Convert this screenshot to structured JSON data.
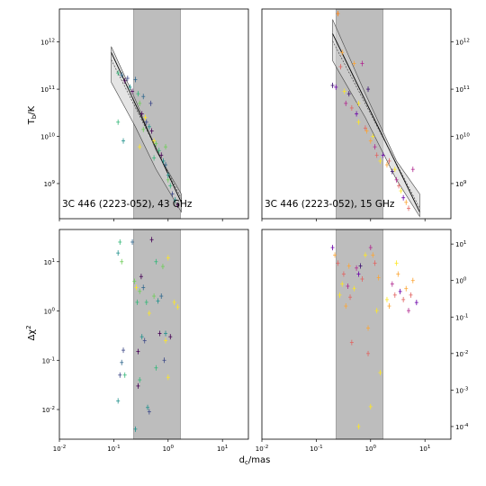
{
  "chart_data": {
    "type": "scatter",
    "ylabel_top": "T_b/K",
    "ylabel_bottom": "Δχ²",
    "xlabel": "d_c/mas",
    "shaded_region_x": [
      0.23,
      1.7
    ],
    "shade_color": "#bdbdbd",
    "panels": [
      {
        "id": "top-left",
        "annotation": "3C 446 (2223-052), 43 GHz",
        "xlog": true,
        "ylog": true,
        "xlim": [
          0.01,
          30
        ],
        "ylim": [
          180000000.0,
          5000000000000.0
        ],
        "x_ticks": [],
        "y_ticks": [
          "10^9",
          "10^10",
          "10^11",
          "10^12"
        ],
        "y_side": "left",
        "fit_line": {
          "x": [
            0.09,
            1.75
          ],
          "y": [
            600000000000.0,
            400000000.0
          ]
        },
        "band": {
          "x": [
            0.09,
            0.25,
            0.6,
            1.75
          ],
          "lower": [
            140000000000.0,
            16000000000.0,
            2000000000.0,
            250000000.0
          ],
          "upper": [
            800000000000.0,
            60000000000.0,
            5000000000.0,
            600000000.0
          ]
        },
        "points": [
          [
            0.12,
            220000000000.0,
            "#35b779"
          ],
          [
            0.14,
            200000000000.0,
            "#31688e"
          ],
          [
            0.16,
            150000000000.0,
            "#440154"
          ],
          [
            0.18,
            170000000000.0,
            "#3e4a89"
          ],
          [
            0.2,
            110000000000.0,
            "#21918c"
          ],
          [
            0.22,
            90000000000.0,
            "#440154"
          ],
          [
            0.25,
            160000000000.0,
            "#31688e"
          ],
          [
            0.28,
            80000000000.0,
            "#35b779"
          ],
          [
            0.3,
            50000000000.0,
            "#6ece58"
          ],
          [
            0.33,
            30000000000.0,
            "#440154"
          ],
          [
            0.35,
            70000000000.0,
            "#31688e"
          ],
          [
            0.38,
            25000000000.0,
            "#fde725"
          ],
          [
            0.4,
            20000000000.0,
            "#3e4a89"
          ],
          [
            0.45,
            16000000000.0,
            "#21918c"
          ],
          [
            0.5,
            13000000000.0,
            "#440154"
          ],
          [
            0.55,
            8000000000.0,
            "#fde725"
          ],
          [
            0.6,
            7000000000.0,
            "#6ece58"
          ],
          [
            0.68,
            5000000000.0,
            "#35b779"
          ],
          [
            0.75,
            4000000000.0,
            "#440154"
          ],
          [
            0.82,
            3000000000.0,
            "#21918c"
          ],
          [
            0.9,
            2500000000.0,
            "#31688e"
          ],
          [
            1.0,
            1200000000.0,
            "#6ece58"
          ],
          [
            1.1,
            900000000.0,
            "#35b779"
          ],
          [
            1.2,
            600000000.0,
            "#3e4a89"
          ],
          [
            1.35,
            450000000.0,
            "#21918c"
          ],
          [
            1.5,
            350000000.0,
            "#440154"
          ],
          [
            0.12,
            20000000000.0,
            "#35b779"
          ],
          [
            0.15,
            8000000000.0,
            "#21918c"
          ],
          [
            0.3,
            6000000000.0,
            "#fde725"
          ],
          [
            0.35,
            14000000000.0,
            "#6ece58"
          ],
          [
            0.55,
            3500000000.0,
            "#35b779"
          ],
          [
            0.9,
            6000000000.0,
            "#6ece58"
          ],
          [
            1.0,
            1500000000.0,
            "#21918c"
          ],
          [
            0.48,
            50000000000.0,
            "#3e4a89"
          ]
        ]
      },
      {
        "id": "top-right",
        "annotation": "3C 446 (2223-052), 15 GHz",
        "xlog": true,
        "ylog": true,
        "xlim": [
          0.01,
          30
        ],
        "ylim": [
          180000000.0,
          5000000000000.0
        ],
        "x_ticks": [],
        "y_ticks": [
          "10^9",
          "10^10",
          "10^11",
          "10^12"
        ],
        "y_side": "right",
        "fit_line": {
          "x": [
            0.2,
            8.0
          ],
          "y": [
            1500000000000.0,
            250000000.0
          ]
        },
        "band": {
          "x": [
            0.2,
            0.8,
            3.0,
            8.0
          ],
          "lower": [
            400000000000.0,
            25000000000.0,
            1200000000.0,
            200000000.0
          ],
          "upper": [
            3000000000000.0,
            80000000000.0,
            3000000000.0,
            600000000.0
          ]
        },
        "points": [
          [
            0.2,
            120000000000.0,
            "#3b0f70"
          ],
          [
            0.23,
            110000000000.0,
            "#6a00a8"
          ],
          [
            0.25,
            4000000000000.0,
            "#ff7f0e"
          ],
          [
            0.28,
            300000000000.0,
            "#e16462"
          ],
          [
            0.3,
            600000000000.0,
            "#fca636"
          ],
          [
            0.33,
            90000000000.0,
            "#fde725"
          ],
          [
            0.35,
            50000000000.0,
            "#b12a90"
          ],
          [
            0.4,
            80000000000.0,
            "#3b0f70"
          ],
          [
            0.45,
            40000000000.0,
            "#e16462"
          ],
          [
            0.5,
            350000000000.0,
            "#fca636"
          ],
          [
            0.55,
            30000000000.0,
            "#6a00a8"
          ],
          [
            0.6,
            20000000000.0,
            "#fde725"
          ],
          [
            0.7,
            350000000000.0,
            "#b12a90"
          ],
          [
            0.8,
            15000000000.0,
            "#e16462"
          ],
          [
            0.9,
            100000000000.0,
            "#3b0f70"
          ],
          [
            1.0,
            8000000000.0,
            "#fca636"
          ],
          [
            1.1,
            10000000000.0,
            "#fde725"
          ],
          [
            1.2,
            6000000000.0,
            "#b12a90"
          ],
          [
            1.3,
            4000000000.0,
            "#e16462"
          ],
          [
            1.5,
            3000000000.0,
            "#fde725"
          ],
          [
            1.7,
            4000000000.0,
            "#6a00a8"
          ],
          [
            2.0,
            2500000000.0,
            "#fca636"
          ],
          [
            2.2,
            3000000000.0,
            "#e16462"
          ],
          [
            2.5,
            1800000000.0,
            "#3b0f70"
          ],
          [
            2.8,
            2000000000.0,
            "#fde725"
          ],
          [
            3.0,
            1200000000.0,
            "#b12a90"
          ],
          [
            3.3,
            900000000.0,
            "#e16462"
          ],
          [
            3.6,
            700000000.0,
            "#fde725"
          ],
          [
            4.0,
            500000000.0,
            "#6a00a8"
          ],
          [
            4.5,
            400000000.0,
            "#fca636"
          ],
          [
            5.0,
            300000000.0,
            "#e16462"
          ],
          [
            6.0,
            2000000000.0,
            "#b12a90"
          ],
          [
            0.6,
            50000000000.0,
            "#fde725"
          ],
          [
            0.85,
            13000000000.0,
            "#fca636"
          ]
        ]
      },
      {
        "id": "bottom-left",
        "annotation": "",
        "xlog": true,
        "ylog": true,
        "xlim": [
          0.01,
          30
        ],
        "ylim": [
          0.0025,
          45
        ],
        "x_ticks": [
          "10^-2",
          "10^-1",
          "10^0",
          "10^1"
        ],
        "y_ticks": [
          "10^-2",
          "10^-1",
          "10^0",
          "10^1"
        ],
        "y_side": "left",
        "points": [
          [
            0.12,
            15,
            "#21918c"
          ],
          [
            0.13,
            25,
            "#35b779"
          ],
          [
            0.14,
            10,
            "#6ece58"
          ],
          [
            0.12,
            0.015,
            "#21918c"
          ],
          [
            0.13,
            0.05,
            "#3e4a89"
          ],
          [
            0.14,
            0.09,
            "#31688e"
          ],
          [
            0.15,
            0.16,
            "#3e4a89"
          ],
          [
            0.16,
            0.05,
            "#35b779"
          ],
          [
            0.22,
            25,
            "#31688e"
          ],
          [
            0.24,
            4,
            "#6ece58"
          ],
          [
            0.25,
            0.004,
            "#21918c"
          ],
          [
            0.26,
            3,
            "#fde725"
          ],
          [
            0.27,
            1.5,
            "#35b779"
          ],
          [
            0.28,
            0.15,
            "#440154"
          ],
          [
            0.3,
            2.5,
            "#6ece58"
          ],
          [
            0.3,
            0.04,
            "#35b779"
          ],
          [
            0.32,
            5,
            "#440154"
          ],
          [
            0.33,
            0.3,
            "#21918c"
          ],
          [
            0.35,
            3,
            "#31688e"
          ],
          [
            0.37,
            0.25,
            "#3e4a89"
          ],
          [
            0.4,
            1.5,
            "#35b779"
          ],
          [
            0.42,
            0.011,
            "#21918c"
          ],
          [
            0.45,
            0.009,
            "#3e4a89"
          ],
          [
            0.5,
            28,
            "#440154"
          ],
          [
            0.55,
            2,
            "#6ece58"
          ],
          [
            0.6,
            10,
            "#35b779"
          ],
          [
            0.65,
            1.6,
            "#21918c"
          ],
          [
            0.7,
            0.35,
            "#440154"
          ],
          [
            0.75,
            2,
            "#31688e"
          ],
          [
            0.8,
            8,
            "#6ece58"
          ],
          [
            0.85,
            0.1,
            "#3e4a89"
          ],
          [
            0.9,
            0.35,
            "#21918c"
          ],
          [
            1.0,
            12,
            "#fde725"
          ],
          [
            1.1,
            0.3,
            "#440154"
          ],
          [
            1.3,
            1.5,
            "#fde725"
          ],
          [
            1.5,
            1.2,
            "#fde725"
          ],
          [
            0.6,
            0.07,
            "#35b779"
          ],
          [
            0.9,
            0.25,
            "#fde725"
          ],
          [
            0.28,
            0.03,
            "#440154"
          ],
          [
            0.45,
            0.9,
            "#fde725"
          ],
          [
            1.0,
            0.045,
            "#fde725"
          ]
        ]
      },
      {
        "id": "bottom-right",
        "annotation": "",
        "xlog": true,
        "ylog": true,
        "xlim": [
          0.01,
          30
        ],
        "ylim": [
          4.5e-05,
          25
        ],
        "x_ticks": [
          "10^-2",
          "10^-1",
          "10^0",
          "10^1"
        ],
        "y_ticks": [
          "10^-4",
          "10^-3",
          "10^-2",
          "10^-1",
          "10^0",
          "10^1"
        ],
        "y_side": "right",
        "points": [
          [
            0.2,
            8,
            "#6a00a8"
          ],
          [
            0.22,
            5,
            "#fca636"
          ],
          [
            0.25,
            3,
            "#e16462"
          ],
          [
            0.27,
            0.4,
            "#fde725"
          ],
          [
            0.3,
            0.8,
            "#fde725"
          ],
          [
            0.32,
            1.5,
            "#e16462"
          ],
          [
            0.35,
            0.2,
            "#fca636"
          ],
          [
            0.38,
            0.7,
            "#b12a90"
          ],
          [
            0.4,
            2.5,
            "#fca636"
          ],
          [
            0.42,
            0.35,
            "#e16462"
          ],
          [
            0.45,
            0.02,
            "#e16462"
          ],
          [
            0.5,
            0.6,
            "#fde725"
          ],
          [
            0.55,
            2.2,
            "#b12a90"
          ],
          [
            0.6,
            1.5,
            "#6a00a8"
          ],
          [
            0.65,
            2.5,
            "#3b0f70"
          ],
          [
            0.7,
            1.1,
            "#e16462"
          ],
          [
            0.8,
            5,
            "#fde725"
          ],
          [
            0.9,
            0.05,
            "#fca636"
          ],
          [
            1.0,
            8,
            "#b12a90"
          ],
          [
            1.1,
            5,
            "#fca636"
          ],
          [
            1.2,
            3,
            "#e16462"
          ],
          [
            1.3,
            0.15,
            "#fde725"
          ],
          [
            1.4,
            1.2,
            "#fca636"
          ],
          [
            1.5,
            0.003,
            "#fde725"
          ],
          [
            2.0,
            0.3,
            "#fde725"
          ],
          [
            2.2,
            0.2,
            "#fca636"
          ],
          [
            2.5,
            0.8,
            "#b12a90"
          ],
          [
            2.8,
            0.4,
            "#e16462"
          ],
          [
            3.0,
            3,
            "#fde725"
          ],
          [
            3.2,
            1.5,
            "#fca636"
          ],
          [
            3.5,
            0.5,
            "#6a00a8"
          ],
          [
            4.0,
            0.3,
            "#e16462"
          ],
          [
            4.5,
            0.6,
            "#fca636"
          ],
          [
            5.0,
            0.15,
            "#b12a90"
          ],
          [
            5.5,
            0.4,
            "#e16462"
          ],
          [
            6.0,
            1.0,
            "#fca636"
          ],
          [
            7.0,
            0.25,
            "#6a00a8"
          ],
          [
            1.0,
            0.00035,
            "#fde725"
          ],
          [
            0.9,
            0.01,
            "#e16462"
          ],
          [
            0.6,
            0.0001,
            "#fde725"
          ]
        ]
      }
    ]
  }
}
